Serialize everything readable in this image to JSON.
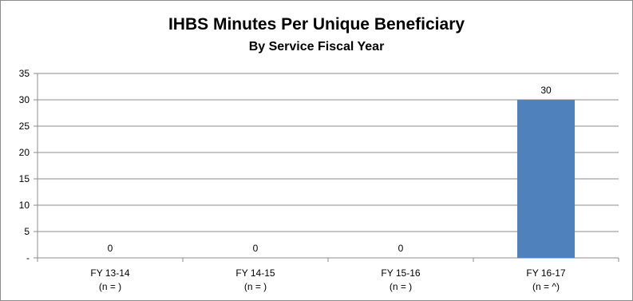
{
  "chart_data": {
    "type": "bar",
    "title": "IHBS Minutes Per Unique Beneficiary",
    "subtitle": "By Service Fiscal Year",
    "categories": [
      "FY 13-14",
      "FY 14-15",
      "FY 15-16",
      "FY 16-17"
    ],
    "category_sublabels": [
      "(n = )",
      "(n = )",
      "(n = )",
      "(n = ^)"
    ],
    "values": [
      0,
      0,
      0,
      30
    ],
    "data_labels": [
      "0",
      "0",
      "0",
      "30"
    ],
    "ylim": [
      0,
      35
    ],
    "yticks": [
      0,
      5,
      10,
      15,
      20,
      25,
      30,
      35
    ],
    "ytick_labels": [
      "-",
      "5",
      "10",
      "15",
      "20",
      "25",
      "30",
      "35"
    ],
    "xlabel": "",
    "ylabel": "",
    "grid": true,
    "bar_color": "#4f81bd",
    "gridline_color": "#8c8c8c",
    "legend": "none"
  }
}
